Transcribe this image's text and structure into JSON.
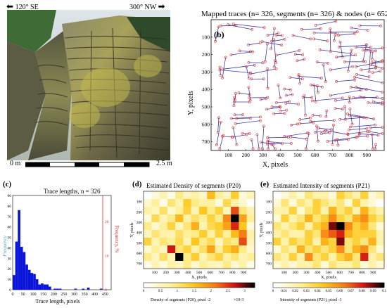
{
  "photo": {
    "dir_left": "120° SE",
    "dir_right": "300° NW",
    "scale_start": "0 m",
    "scale_end": "2.5 m"
  },
  "panel_b": {
    "title": "Mapped traces (n= 326, segments (n= 326) & nodes (n= 652)",
    "letter": "(b)",
    "xlabel": "X, pixels",
    "ylabel": "Y, pixels",
    "xticks": [
      "100",
      "200",
      "300",
      "400",
      "500",
      "600",
      "700",
      "800",
      "900"
    ],
    "yticks": [
      "100",
      "200",
      "300",
      "400",
      "500",
      "600",
      "700"
    ]
  },
  "panel_c": {
    "letter": "(c)",
    "title": "Trace lengths, n = 326",
    "xlabel": "Trace length, pixels",
    "ylabel_left": "Frequency",
    "ylabel_right": "Frequency, %",
    "xticks": [
      "0",
      "50",
      "100",
      "150",
      "200",
      "250",
      "300",
      "350",
      "400",
      "450"
    ],
    "yticks_left": [
      "0",
      "10",
      "20",
      "30",
      "40",
      "50",
      "60",
      "70",
      "80",
      "90"
    ],
    "yticks_right": [
      "0",
      "10",
      "20",
      "30"
    ]
  },
  "panel_d": {
    "letter": "(d)",
    "title": "Estimated Density of segments (P20)",
    "xlabel": "X, pixels",
    "ylabel": "Y, pixels",
    "xticks": [
      "100",
      "200",
      "300",
      "400",
      "500",
      "600",
      "700",
      "800",
      "900"
    ],
    "yticks": [
      "100",
      "200",
      "300",
      "400",
      "500",
      "600",
      "700"
    ],
    "cbar_ticks": [
      "0",
      "0.5",
      "1",
      "1.5",
      "2",
      "2.5",
      "3"
    ],
    "cbar_label": "Density of segments (P20), pixel -2",
    "cbar_mult": "×10-3"
  },
  "panel_e": {
    "letter": "(e)",
    "title": "Estimated Intensity of segments (P21)",
    "xlabel": "X, pixels",
    "ylabel": "Y, pixels",
    "xticks": [
      "100",
      "200",
      "300",
      "400",
      "500",
      "600",
      "700",
      "800",
      "900"
    ],
    "yticks": [
      "100",
      "200",
      "300",
      "400",
      "500",
      "600",
      "700"
    ],
    "cbar_ticks": [
      "0",
      "0.01",
      "0.02",
      "0.03",
      "0.04",
      "0.05",
      "0.06",
      "0.07",
      "0.08",
      "0.09",
      "0.1"
    ],
    "cbar_label": "Intensity of segments (P21), pixel -1"
  },
  "colors": {
    "trace_line": "#3c3ca0",
    "node": "#e03030",
    "histogram_bar": "#0a14d8",
    "right_axis": "#d43030",
    "left_axis_label": "#5aaab4",
    "heat_low": "#ffffff",
    "heat_mid": "#ffcc00",
    "heat_high": "#000000"
  },
  "chart_data": [
    {
      "type": "bar",
      "title": "Trace lengths, n = 326",
      "xlabel": "Trace length, pixels",
      "ylabel": "Frequency",
      "bin_width": 12.5,
      "x": [
        6.25,
        18.75,
        31.25,
        43.75,
        56.25,
        68.75,
        81.25,
        93.75,
        106.25,
        118.75,
        131.25,
        143.75,
        156.25,
        168.75,
        181.25,
        193.75,
        206.25,
        218.75,
        231.25,
        243.75,
        256.25,
        268.75,
        281.25,
        293.75,
        306.25,
        318.75,
        331.25,
        343.75,
        356.25,
        368.75,
        381.25,
        393.75,
        406.25,
        418.75,
        431.25,
        443.75
      ],
      "values": [
        14,
        46,
        76,
        41,
        36,
        24,
        19,
        16,
        15,
        10,
        5,
        6,
        5,
        5,
        3,
        0,
        1,
        1,
        1,
        0,
        0,
        0,
        0,
        0,
        1,
        0,
        0,
        1,
        0,
        2,
        0,
        0,
        0,
        0,
        1,
        0
      ],
      "xlim": [
        0,
        480
      ],
      "ylim": [
        0,
        90
      ]
    },
    {
      "type": "heatmap",
      "title": "Estimated Density of segments (P20)",
      "xlabel": "X, pixels",
      "ylabel": "Y, pixels",
      "colorbar_label": "Density of segments (P20), pixel -2",
      "colorbar_range": [
        0,
        3.3
      ],
      "colorbar_multiplier": "×10-3",
      "values": [
        [
          0.0,
          0.3,
          0.6,
          0.2,
          0.9,
          0.5,
          0.7,
          0.4,
          1.6,
          0.8,
          0.5,
          1.4,
          0.3,
          0.6
        ],
        [
          0.4,
          0.8,
          0.2,
          1.0,
          0.6,
          1.4,
          0.9,
          0.7,
          0.8,
          0.3,
          1.2,
          0.7,
          0.4,
          0.0
        ],
        [
          0.7,
          0.5,
          1.1,
          0.4,
          0.8,
          1.3,
          0.6,
          1.5,
          0.9,
          1.3,
          0.5,
          2.4,
          1.0,
          0.6
        ],
        [
          0.3,
          1.2,
          0.6,
          0.9,
          1.6,
          0.7,
          1.1,
          0.8,
          1.3,
          0.9,
          2.0,
          3.3,
          1.8,
          0.8
        ],
        [
          0.9,
          0.4,
          0.8,
          1.3,
          0.5,
          1.0,
          1.7,
          0.6,
          1.2,
          1.4,
          1.8,
          2.6,
          1.5,
          0.3
        ],
        [
          0.5,
          1.0,
          0.7,
          0.6,
          1.1,
          0.8,
          0.9,
          1.4,
          0.7,
          1.3,
          0.8,
          1.6,
          2.1,
          0.7
        ],
        [
          1.3,
          0.6,
          1.0,
          0.8,
          1.2,
          0.6,
          1.5,
          0.9,
          1.2,
          0.5,
          1.1,
          0.9,
          2.4,
          0.6
        ],
        [
          0.4,
          0.8,
          0.5,
          2.7,
          1.0,
          1.3,
          0.7,
          1.1,
          1.8,
          0.8,
          1.4,
          1.7,
          0.9,
          0.4
        ],
        [
          0.9,
          0.5,
          1.1,
          0.6,
          3.3,
          0.9,
          1.4,
          0.6,
          1.0,
          1.3,
          0.7,
          1.0,
          0.6,
          0.8
        ],
        [
          0.2,
          0.6,
          0.3,
          0.7,
          0.5,
          0.9,
          0.4,
          0.8,
          0.6,
          0.5,
          0.9,
          0.4,
          0.7,
          0.2
        ]
      ]
    },
    {
      "type": "heatmap",
      "title": "Estimated Intensity of segments (P21)",
      "xlabel": "X, pixels",
      "ylabel": "Y, pixels",
      "colorbar_label": "Intensity of segments (P21), pixel -1",
      "colorbar_range": [
        0,
        0.1
      ],
      "values": [
        [
          0.0,
          0.01,
          0.02,
          0.01,
          0.03,
          0.02,
          0.02,
          0.01,
          0.04,
          0.03,
          0.02,
          0.04,
          0.01,
          0.02
        ],
        [
          0.01,
          0.03,
          0.01,
          0.03,
          0.02,
          0.04,
          0.03,
          0.02,
          0.03,
          0.01,
          0.04,
          0.02,
          0.01,
          0.0
        ],
        [
          0.02,
          0.02,
          0.04,
          0.01,
          0.03,
          0.04,
          0.02,
          0.05,
          0.03,
          0.04,
          0.02,
          0.05,
          0.03,
          0.02
        ],
        [
          0.01,
          0.04,
          0.02,
          0.03,
          0.05,
          0.03,
          0.04,
          0.06,
          0.04,
          0.03,
          0.05,
          0.06,
          0.04,
          0.03
        ],
        [
          0.03,
          0.02,
          0.03,
          0.04,
          0.02,
          0.04,
          0.05,
          0.09,
          0.1,
          0.06,
          0.04,
          0.05,
          0.03,
          0.01
        ],
        [
          0.02,
          0.03,
          0.02,
          0.02,
          0.04,
          0.03,
          0.06,
          0.07,
          0.08,
          0.05,
          0.04,
          0.04,
          0.04,
          0.02
        ],
        [
          0.04,
          0.02,
          0.04,
          0.03,
          0.04,
          0.02,
          0.05,
          0.04,
          0.09,
          0.03,
          0.04,
          0.03,
          0.05,
          0.02
        ],
        [
          0.01,
          0.03,
          0.02,
          0.05,
          0.03,
          0.04,
          0.03,
          0.04,
          0.06,
          0.03,
          0.05,
          0.06,
          0.03,
          0.01
        ],
        [
          0.03,
          0.02,
          0.04,
          0.02,
          0.06,
          0.03,
          0.04,
          0.02,
          0.04,
          0.05,
          0.03,
          0.08,
          0.02,
          0.03
        ],
        [
          0.01,
          0.02,
          0.01,
          0.02,
          0.02,
          0.03,
          0.01,
          0.03,
          0.02,
          0.02,
          0.03,
          0.01,
          0.02,
          0.01
        ]
      ]
    }
  ]
}
